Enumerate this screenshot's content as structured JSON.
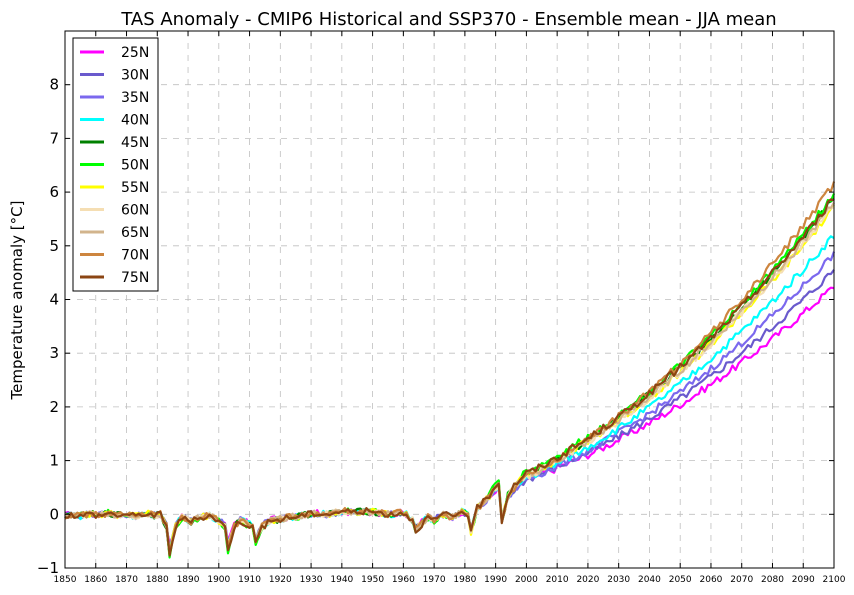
{
  "chart_data": {
    "type": "line",
    "title": "TAS Anomaly - CMIP6 Historical and SSP370 - Ensemble mean - JJA mean",
    "xlabel": "",
    "ylabel": "Temperature anomaly [°C]",
    "xlim": [
      1850,
      2100
    ],
    "ylim": [
      -1,
      9
    ],
    "xticks": [
      1850,
      1860,
      1870,
      1880,
      1890,
      1900,
      1910,
      1920,
      1930,
      1940,
      1950,
      1960,
      1970,
      1980,
      1990,
      2000,
      2010,
      2020,
      2030,
      2040,
      2050,
      2060,
      2070,
      2080,
      2090,
      2100
    ],
    "yticks": [
      -1,
      0,
      1,
      2,
      3,
      4,
      5,
      6,
      7,
      8
    ],
    "grid": true,
    "legend_position": "top-left",
    "historical_base": [
      [
        1850,
        -0.02
      ],
      [
        1852,
        0.0
      ],
      [
        1855,
        -0.03
      ],
      [
        1858,
        0.01
      ],
      [
        1861,
        -0.02
      ],
      [
        1864,
        0.02
      ],
      [
        1867,
        -0.01
      ],
      [
        1870,
        0.0
      ],
      [
        1873,
        -0.03
      ],
      [
        1876,
        0.02
      ],
      [
        1879,
        -0.02
      ],
      [
        1881,
        0.0
      ],
      [
        1883,
        -0.2
      ],
      [
        1884,
        -0.6
      ],
      [
        1886,
        -0.2
      ],
      [
        1888,
        -0.05
      ],
      [
        1891,
        -0.12
      ],
      [
        1894,
        -0.05
      ],
      [
        1897,
        -0.02
      ],
      [
        1900,
        -0.1
      ],
      [
        1902,
        -0.2
      ],
      [
        1903,
        -0.55
      ],
      [
        1905,
        -0.2
      ],
      [
        1907,
        -0.1
      ],
      [
        1909,
        -0.15
      ],
      [
        1911,
        -0.2
      ],
      [
        1912,
        -0.45
      ],
      [
        1914,
        -0.2
      ],
      [
        1917,
        -0.1
      ],
      [
        1920,
        -0.08
      ],
      [
        1923,
        -0.05
      ],
      [
        1926,
        -0.03
      ],
      [
        1929,
        0.0
      ],
      [
        1932,
        0.02
      ],
      [
        1935,
        0.0
      ],
      [
        1938,
        0.03
      ],
      [
        1941,
        0.05
      ],
      [
        1944,
        0.03
      ],
      [
        1947,
        0.05
      ],
      [
        1950,
        0.04
      ],
      [
        1953,
        0.02
      ],
      [
        1956,
        0.0
      ],
      [
        1959,
        0.03
      ],
      [
        1961,
        0.0
      ],
      [
        1963,
        -0.1
      ],
      [
        1964,
        -0.25
      ],
      [
        1966,
        -0.15
      ],
      [
        1968,
        -0.05
      ],
      [
        1970,
        -0.1
      ],
      [
        1973,
        0.0
      ],
      [
        1976,
        -0.05
      ],
      [
        1979,
        0.05
      ],
      [
        1981,
        0.0
      ],
      [
        1982,
        -0.3
      ],
      [
        1984,
        0.1
      ],
      [
        1986,
        0.2
      ],
      [
        1988,
        0.3
      ],
      [
        1990,
        0.45
      ],
      [
        1991,
        0.5
      ],
      [
        1992,
        -0.1
      ],
      [
        1994,
        0.3
      ],
      [
        1996,
        0.45
      ],
      [
        1998,
        0.55
      ],
      [
        2000,
        0.65
      ]
    ],
    "series": [
      {
        "name": "25N",
        "color": "#ff00ff",
        "end_2100": 4.25,
        "hist_scale": 1.0
      },
      {
        "name": "30N",
        "color": "#6a5acd",
        "end_2100": 4.55,
        "hist_scale": 1.0
      },
      {
        "name": "35N",
        "color": "#7b68ee",
        "end_2100": 4.85,
        "hist_scale": 1.0
      },
      {
        "name": "40N",
        "color": "#00ffff",
        "end_2100": 5.2,
        "hist_scale": 1.05
      },
      {
        "name": "45N",
        "color": "#008000",
        "end_2100": 5.9,
        "hist_scale": 1.15
      },
      {
        "name": "50N",
        "color": "#00ff00",
        "end_2100": 5.95,
        "hist_scale": 1.25
      },
      {
        "name": "55N",
        "color": "#ffff00",
        "end_2100": 5.7,
        "hist_scale": 1.15
      },
      {
        "name": "60N",
        "color": "#f5deb3",
        "end_2100": 5.75,
        "hist_scale": 1.1
      },
      {
        "name": "65N",
        "color": "#d2b48c",
        "end_2100": 5.8,
        "hist_scale": 1.1
      },
      {
        "name": "70N",
        "color": "#cd853f",
        "end_2100": 6.15,
        "hist_scale": 1.1
      },
      {
        "name": "75N",
        "color": "#8b4513",
        "end_2100": 5.9,
        "hist_scale": 1.2
      }
    ]
  }
}
